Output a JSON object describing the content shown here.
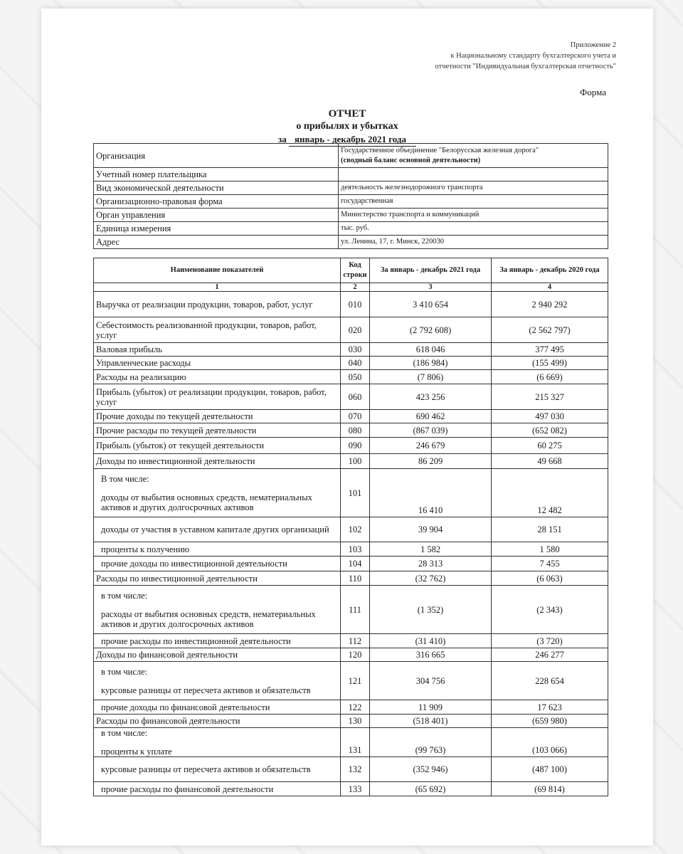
{
  "appendix": [
    "Приложение 2",
    "к Национальному стандарту бухгалтерского учета и",
    "отчетности \"Индивидуальная бухгалтерская отчетность\""
  ],
  "form_label": "Форма",
  "title": "ОТЧЕТ",
  "subtitle": "о прибылях и убытках",
  "period_prefix": "за",
  "period": "январь -  декабрь   2021 года",
  "info": [
    {
      "label": "Организация",
      "value": "Государственное объединение \"Белорусская железная дорога\"",
      "value2": "(сводный баланс основной деятельности)"
    },
    {
      "label": "Учетный номер плательщика",
      "value": ""
    },
    {
      "label": "Вид экономической деятельности",
      "value": "деятельность железнодорожного транспорта"
    },
    {
      "label": "Организационно-правовая форма",
      "value": "государственная"
    },
    {
      "label": "Орган управления",
      "value": "Министерство транспорта и коммуникаций"
    },
    {
      "label": "Единица измерения",
      "value": "тыс. руб."
    },
    {
      "label": "Адрес",
      "value": "ул. Ленина, 17, г. Минск, 220030"
    }
  ],
  "table": {
    "headers": [
      "Наименование показателей",
      "Код строки",
      "За январь - декабрь 2021 года",
      "За январь - декабрь 2020 года"
    ],
    "col_numbers": [
      "1",
      "2",
      "3",
      "4"
    ],
    "rows": [
      {
        "label": "Выручка от реализации продукции, товаров, работ, услуг",
        "code": "010",
        "y2021": "3 410 654",
        "y2020": "2 940 292"
      },
      {
        "label": "Себестоимость реализованной продукции, товаров, работ, услуг",
        "code": "020",
        "y2021": "(2 792 608)",
        "y2020": "(2 562 797)"
      },
      {
        "label": "Валовая прибыль",
        "code": "030",
        "y2021": "618 046",
        "y2020": "377 495"
      },
      {
        "label": "Управленческие расходы",
        "code": "040",
        "y2021": "(186 984)",
        "y2020": "(155 499)"
      },
      {
        "label": "Расходы на реализацию",
        "code": "050",
        "y2021": "(7 806)",
        "y2020": "(6 669)"
      },
      {
        "label": "Прибыль (убыток) от реализации продукции, товаров, работ, услуг",
        "code": "060",
        "y2021": "423 256",
        "y2020": "215 327"
      },
      {
        "label": "Прочие доходы по текущей деятельности",
        "code": "070",
        "y2021": "690 462",
        "y2020": "497 030"
      },
      {
        "label": "Прочие расходы по текущей деятельности",
        "code": "080",
        "y2021": "(867 039)",
        "y2020": "(652 082)"
      },
      {
        "label": "Прибыль (убыток) от текущей деятельности",
        "code": "090",
        "y2021": "246 679",
        "y2020": "60 275"
      },
      {
        "label": "Доходы по инвестиционной деятельности",
        "code": "100",
        "y2021": "86 209",
        "y2020": "49 668"
      },
      {
        "prefix": "В том числе:",
        "label": "доходы от выбытия основных средств, нематериальных активов и других долгосрочных активов",
        "code": "101",
        "y2021": "16 410",
        "y2020": "12 482",
        "indent": true
      },
      {
        "label": "доходы от участия в уставном капитале других организаций",
        "code": "102",
        "y2021": "39 904",
        "y2020": "28 151",
        "indent": true
      },
      {
        "label": "проценты к получению",
        "code": "103",
        "y2021": "1 582",
        "y2020": "1 580",
        "indent": true
      },
      {
        "label": "прочие доходы по инвестиционной деятельности",
        "code": "104",
        "y2021": "28 313",
        "y2020": "7 455",
        "indent": true
      },
      {
        "label": "Расходы по инвестиционной деятельности",
        "code": "110",
        "y2021": "(32 762)",
        "y2020": "(6 063)"
      },
      {
        "prefix": "в том числе:",
        "label": "расходы от выбытия основных средств, нематериальных активов и других долгосрочных активов",
        "code": "111",
        "y2021": "(1 352)",
        "y2020": "(2 343)",
        "indent": true
      },
      {
        "label": "прочие расходы по инвестиционной деятельности",
        "code": "112",
        "y2021": "(31 410)",
        "y2020": "(3 720)",
        "indent": true
      },
      {
        "label": "Доходы по финансовой деятельности",
        "code": "120",
        "y2021": "316 665",
        "y2020": "246 277"
      },
      {
        "prefix": "в том числе:",
        "label": "курсовые разницы от пересчета активов и обязательств",
        "code": "121",
        "y2021": "304 756",
        "y2020": "228 654",
        "indent": true
      },
      {
        "label": "прочие доходы по финансовой деятельности",
        "code": "122",
        "y2021": "11 909",
        "y2020": "17 623",
        "indent": true
      },
      {
        "label": "Расходы по финансовой деятельности",
        "code": "130",
        "y2021": "(518 401)",
        "y2020": "(659 980)"
      },
      {
        "prefix": "в том числе:",
        "label": "проценты к уплате",
        "code": "131",
        "y2021": "(99 763)",
        "y2020": "(103 066)",
        "indent": true
      },
      {
        "label": "курсовые разницы от пересчета активов и обязательств",
        "code": "132",
        "y2021": "(352 946)",
        "y2020": "(487 100)",
        "indent": true
      },
      {
        "label": "прочие расходы по финансовой деятельности",
        "code": "133",
        "y2021": "(65 692)",
        "y2020": "(69 814)",
        "indent": true
      }
    ]
  }
}
